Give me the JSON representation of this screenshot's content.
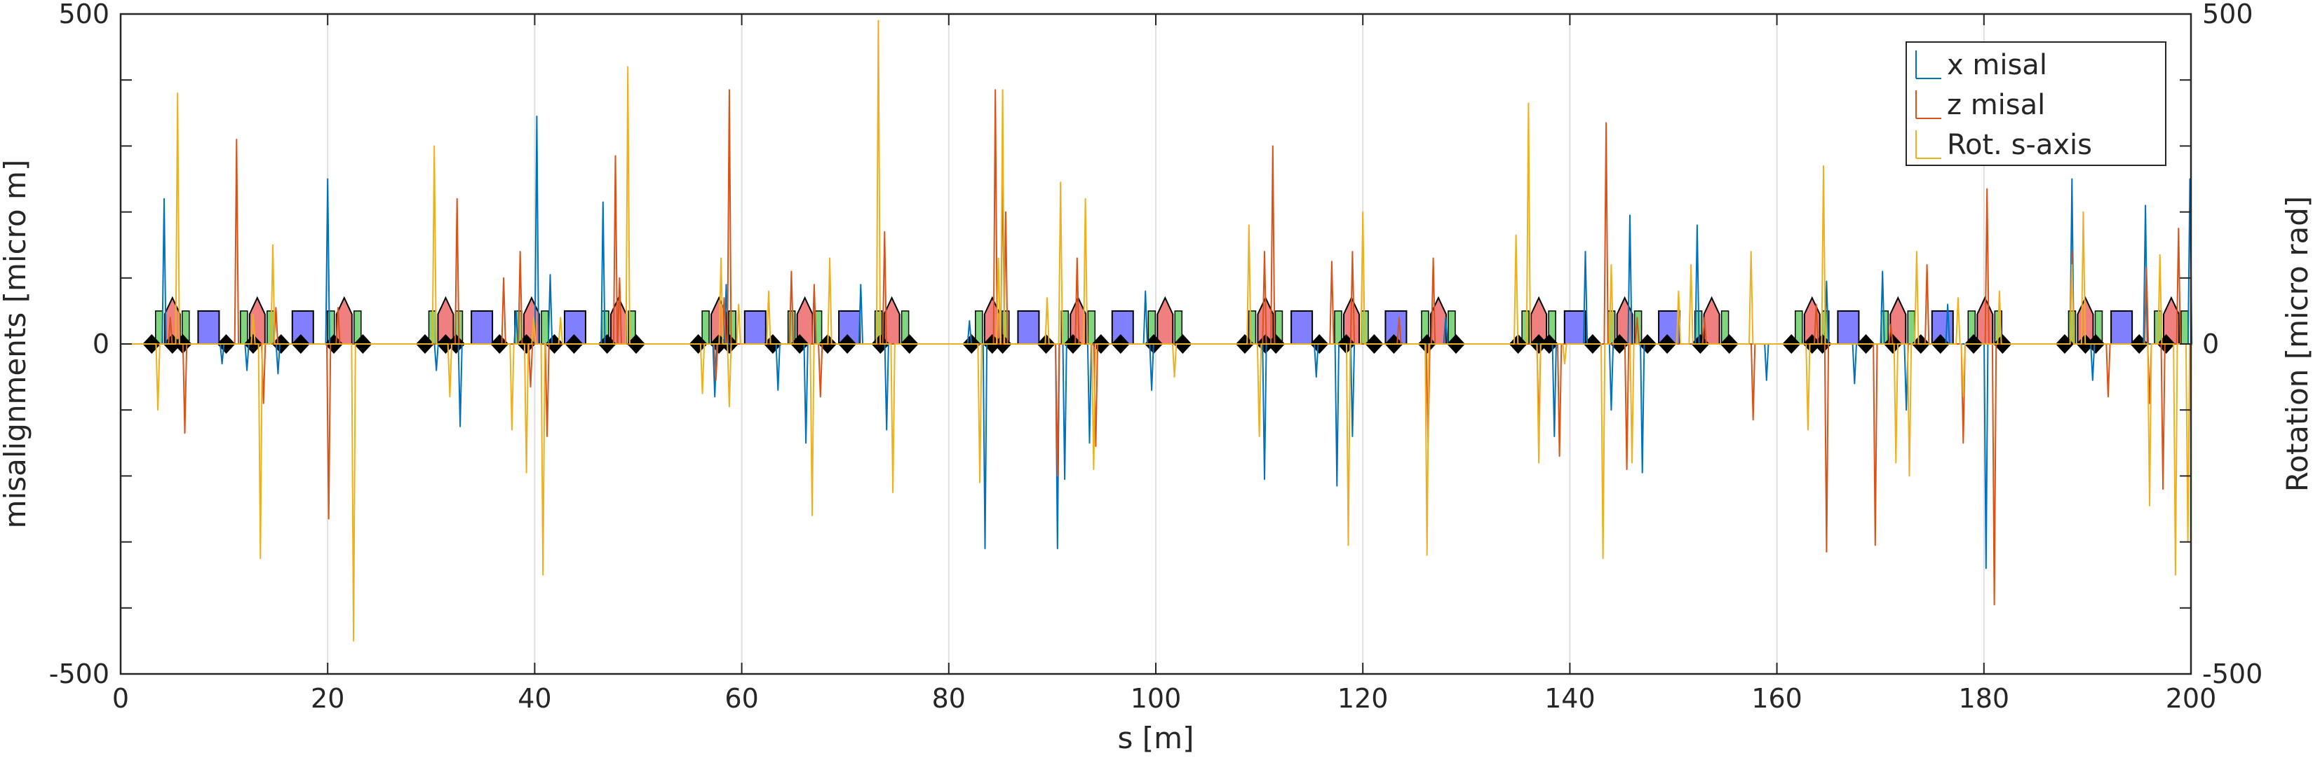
{
  "chart_data": {
    "type": "line",
    "title": "",
    "xlabel": "s [m]",
    "ylabel": "misalignments [micro m]",
    "ylabel_right": "Rotation [micro rad]",
    "xlim": [
      0,
      200
    ],
    "ylim": [
      -500,
      500
    ],
    "ylim_right": [
      -500,
      500
    ],
    "xticks": [
      "0",
      "20",
      "40",
      "60",
      "80",
      "100",
      "120",
      "140",
      "160",
      "180",
      "200"
    ],
    "yticks": [
      "500",
      "0",
      "-500"
    ],
    "yticks_right": [
      "500",
      "0",
      "-500"
    ],
    "grid": "x-only",
    "legend_position": "top-right",
    "series": [
      {
        "name": "x misal",
        "color": "#0072BD",
        "points": [
          [
            4.2,
            220
          ],
          [
            9.8,
            -30
          ],
          [
            12.2,
            -40
          ],
          [
            15.2,
            -45
          ],
          [
            20.0,
            250
          ],
          [
            30.5,
            -40
          ],
          [
            32.8,
            -125
          ],
          [
            38.2,
            50
          ],
          [
            40.2,
            345
          ],
          [
            41.5,
            105
          ],
          [
            46.6,
            215
          ],
          [
            57.4,
            -80
          ],
          [
            58.5,
            90
          ],
          [
            63.5,
            -70
          ],
          [
            66.2,
            -150
          ],
          [
            71.5,
            90
          ],
          [
            74.0,
            -130
          ],
          [
            82.0,
            35
          ],
          [
            83.5,
            -310
          ],
          [
            85.2,
            280
          ],
          [
            90.5,
            -310
          ],
          [
            91.2,
            -205
          ],
          [
            93.6,
            -150
          ],
          [
            99.0,
            80
          ],
          [
            99.6,
            -70
          ],
          [
            110.5,
            -205
          ],
          [
            115.5,
            -50
          ],
          [
            117.5,
            -215
          ],
          [
            119.0,
            -140
          ],
          [
            128.0,
            40
          ],
          [
            138.5,
            -140
          ],
          [
            141.5,
            140
          ],
          [
            144.0,
            -100
          ],
          [
            145.8,
            195
          ],
          [
            147.0,
            -195
          ],
          [
            152.3,
            180
          ],
          [
            159.0,
            -55
          ],
          [
            164.8,
            95
          ],
          [
            167.5,
            -60
          ],
          [
            170.2,
            110
          ],
          [
            172.5,
            -100
          ],
          [
            176.5,
            60
          ],
          [
            180.2,
            -340
          ],
          [
            188.5,
            250
          ],
          [
            190.5,
            -55
          ],
          [
            195.6,
            210
          ],
          [
            199.9,
            250
          ]
        ]
      },
      {
        "name": "z misal",
        "color": "#D95319",
        "points": [
          [
            4.8,
            40
          ],
          [
            6.2,
            -135
          ],
          [
            11.2,
            310
          ],
          [
            13.8,
            -90
          ],
          [
            15.0,
            55
          ],
          [
            20.1,
            -265
          ],
          [
            21.0,
            55
          ],
          [
            32.5,
            220
          ],
          [
            37.0,
            100
          ],
          [
            38.6,
            140
          ],
          [
            39.6,
            -65
          ],
          [
            41.2,
            -140
          ],
          [
            47.8,
            285
          ],
          [
            48.2,
            100
          ],
          [
            57.5,
            -55
          ],
          [
            58.3,
            70
          ],
          [
            58.8,
            385
          ],
          [
            64.8,
            110
          ],
          [
            67.0,
            90
          ],
          [
            67.6,
            -80
          ],
          [
            73.8,
            170
          ],
          [
            84.5,
            385
          ],
          [
            85.5,
            200
          ],
          [
            90.5,
            -200
          ],
          [
            92.4,
            130
          ],
          [
            94.2,
            -155
          ],
          [
            110.5,
            140
          ],
          [
            111.3,
            300
          ],
          [
            117.0,
            125
          ],
          [
            119.0,
            140
          ],
          [
            123.5,
            40
          ],
          [
            126.3,
            -150
          ],
          [
            126.8,
            130
          ],
          [
            137.0,
            -130
          ],
          [
            139.0,
            -170
          ],
          [
            143.5,
            335
          ],
          [
            145.5,
            -190
          ],
          [
            146.5,
            40
          ],
          [
            153.0,
            40
          ],
          [
            157.7,
            -115
          ],
          [
            163.8,
            60
          ],
          [
            164.8,
            -315
          ],
          [
            169.5,
            -305
          ],
          [
            171.0,
            30
          ],
          [
            174.5,
            120
          ],
          [
            178.0,
            -150
          ],
          [
            180.3,
            235
          ],
          [
            181.0,
            -395
          ],
          [
            188.5,
            140
          ],
          [
            192.0,
            -80
          ],
          [
            195.7,
            115
          ],
          [
            196.0,
            -90
          ],
          [
            197.3,
            -220
          ],
          [
            198.8,
            175
          ]
        ]
      },
      {
        "name": "Rot. s-axis",
        "color": "#EDB120",
        "points": [
          [
            3.6,
            -100
          ],
          [
            5.5,
            380
          ],
          [
            12.8,
            45
          ],
          [
            13.5,
            -325
          ],
          [
            14.7,
            150
          ],
          [
            22.5,
            -450
          ],
          [
            30.3,
            300
          ],
          [
            31.8,
            -80
          ],
          [
            37.8,
            -130
          ],
          [
            39.2,
            -195
          ],
          [
            39.9,
            40
          ],
          [
            40.8,
            -350
          ],
          [
            42.5,
            40
          ],
          [
            49.0,
            420
          ],
          [
            56.2,
            -75
          ],
          [
            58.0,
            130
          ],
          [
            58.8,
            -95
          ],
          [
            59.7,
            60
          ],
          [
            62.6,
            80
          ],
          [
            66.8,
            -260
          ],
          [
            68.5,
            130
          ],
          [
            73.2,
            490
          ],
          [
            74.6,
            -225
          ],
          [
            83.0,
            -210
          ],
          [
            84.8,
            130
          ],
          [
            85.2,
            385
          ],
          [
            89.5,
            70
          ],
          [
            90.8,
            245
          ],
          [
            93.2,
            220
          ],
          [
            94.0,
            -190
          ],
          [
            101.8,
            -50
          ],
          [
            109.0,
            180
          ],
          [
            110.0,
            -140
          ],
          [
            118.6,
            -305
          ],
          [
            120.0,
            200
          ],
          [
            126.2,
            -320
          ],
          [
            134.8,
            165
          ],
          [
            136.0,
            365
          ],
          [
            137.0,
            -180
          ],
          [
            139.5,
            -30
          ],
          [
            143.2,
            -325
          ],
          [
            144.0,
            120
          ],
          [
            146.0,
            -180
          ],
          [
            150.5,
            80
          ],
          [
            151.7,
            120
          ],
          [
            157.5,
            140
          ],
          [
            163.0,
            -130
          ],
          [
            164.5,
            270
          ],
          [
            171.5,
            -180
          ],
          [
            172.8,
            -200
          ],
          [
            173.5,
            140
          ],
          [
            177.5,
            70
          ],
          [
            178.0,
            -80
          ],
          [
            181.5,
            80
          ],
          [
            188.5,
            120
          ],
          [
            189.6,
            200
          ],
          [
            196.0,
            -245
          ],
          [
            197.0,
            135
          ],
          [
            198.5,
            -350
          ],
          [
            199.7,
            -300
          ]
        ]
      }
    ],
    "beamline_elements": {
      "dipoles": [
        8.5,
        17.6,
        34.9,
        43.9,
        61.3,
        70.4,
        87.7,
        96.8,
        114.1,
        123.2,
        140.5,
        149.6,
        166.9,
        176.0,
        193.3
      ],
      "quadrupoles": [
        5.0,
        13.2,
        21.6,
        31.4,
        39.7,
        48.1,
        57.8,
        66.1,
        74.5,
        84.2,
        92.5,
        100.9,
        110.6,
        118.9,
        127.3,
        137.0,
        145.3,
        153.7,
        163.4,
        171.7,
        180.1,
        189.8,
        198.1
      ],
      "markers": [
        3.0,
        5.0,
        6.0,
        10.2,
        12.8,
        15.5,
        17.4,
        20.6,
        23.4,
        29.4,
        31.4,
        32.4,
        36.6,
        39.2,
        41.9,
        43.8,
        47.0,
        49.8,
        55.8,
        57.8,
        58.8,
        63.0,
        65.6,
        68.3,
        70.2,
        73.4,
        76.2,
        82.2,
        84.2,
        85.2,
        89.4,
        92.0,
        94.7,
        96.6,
        99.8,
        102.6,
        108.6,
        110.6,
        111.6,
        115.8,
        118.4,
        121.1,
        123.0,
        126.2,
        129.0,
        135.0,
        137.0,
        138.0,
        142.2,
        144.8,
        147.5,
        149.4,
        152.6,
        155.4,
        161.4,
        163.4,
        164.4,
        168.6,
        171.2,
        173.9,
        175.8,
        179.0,
        181.8,
        187.8,
        189.8,
        190.8,
        195.0,
        197.6
      ]
    }
  }
}
